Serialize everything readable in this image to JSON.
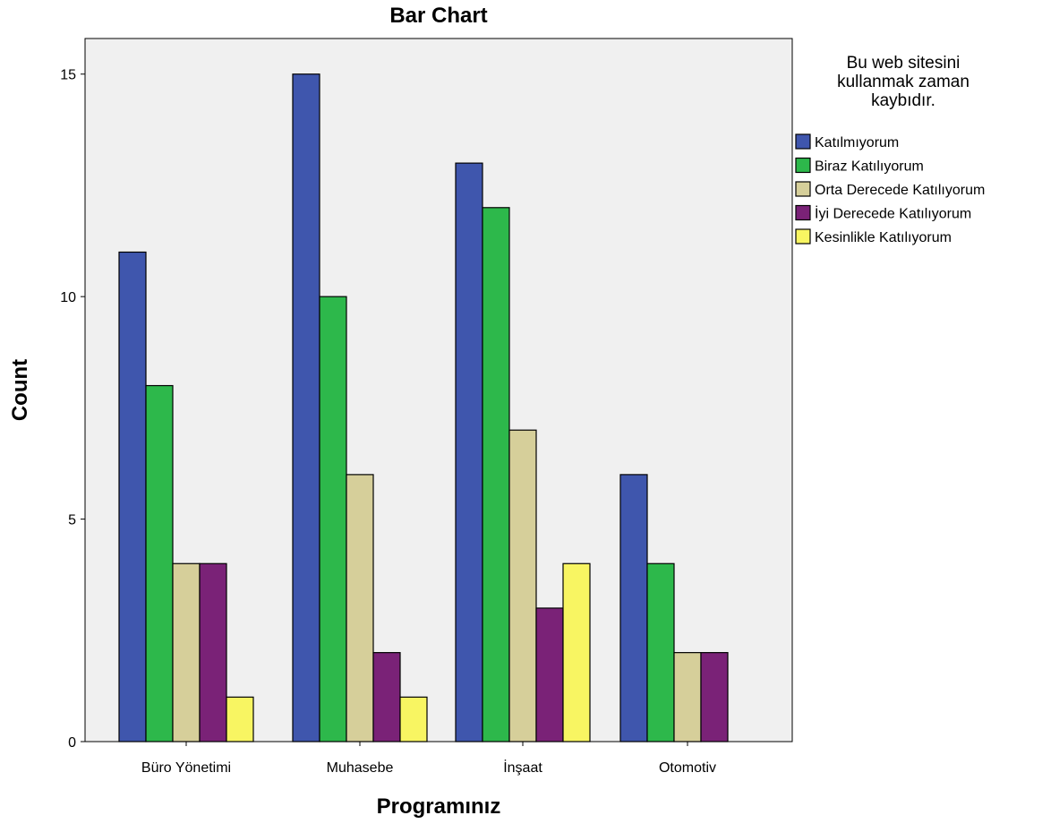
{
  "chart_data": {
    "type": "bar",
    "title": "Bar Chart",
    "xlabel": "Programınız",
    "ylabel": "Count",
    "categories": [
      "Büro Yönetimi",
      "Muhasebe",
      "İnşaat",
      "Otomotiv"
    ],
    "series": [
      {
        "name": "Katılmıyorum",
        "color": "#3f56ad",
        "values": [
          11,
          15,
          13,
          6
        ]
      },
      {
        "name": "Biraz Katılıyorum",
        "color": "#2db84b",
        "values": [
          8,
          10,
          12,
          4
        ]
      },
      {
        "name": "Orta Derecede Katılıyorum",
        "color": "#d6cf9a",
        "values": [
          4,
          6,
          7,
          2
        ]
      },
      {
        "name": "İyi Derecede Katılıyorum",
        "color": "#7a2277",
        "values": [
          4,
          2,
          3,
          2
        ]
      },
      {
        "name": "Kesinlikle Katılıyorum",
        "color": "#f8f562",
        "values": [
          1,
          1,
          4,
          0
        ]
      }
    ],
    "ylim": [
      0,
      15.8
    ],
    "yticks": [
      0,
      5,
      10,
      15
    ],
    "grid": false,
    "legend": {
      "title": "Bu web sitesini\nkullanmak zaman\nkaybıdır.",
      "placement": "right"
    },
    "plot_background": "#f0f0f0"
  }
}
